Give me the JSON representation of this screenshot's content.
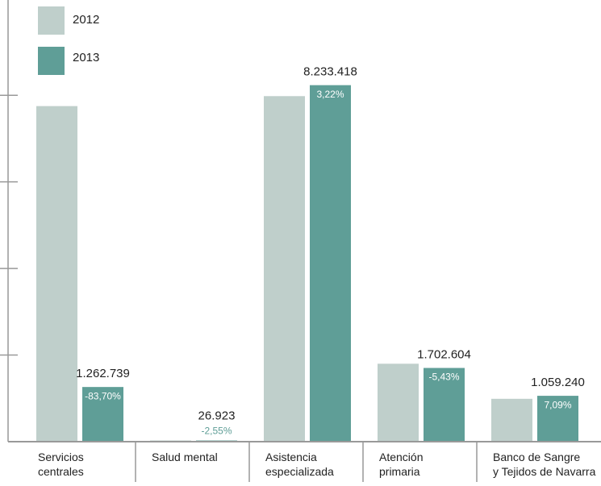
{
  "chart_data": {
    "type": "bar",
    "categories": [
      "Servicios\ncentrales",
      "Salud mental",
      "Asistencia\nespecializada",
      "Atención\nprimaria",
      "Banco de Sangre\ny Tejidos de Navarra"
    ],
    "series": [
      {
        "name": "2012",
        "color": "#bfcfcb",
        "values": [
          7750000,
          28000,
          7980000,
          1800000,
          990000
        ]
      },
      {
        "name": "2013",
        "color": "#5f9e97",
        "values": [
          1262739,
          26923,
          8233418,
          1702604,
          1059240
        ],
        "value_labels": [
          "1.262.739",
          "26.923",
          "8.233.418",
          "1.702.604",
          "1.059.240"
        ],
        "change_labels": [
          "-83,70%",
          "-2,55%",
          "3,22%",
          "-5,43%",
          "7,09%"
        ]
      }
    ],
    "ylim": [
      0,
      10200000
    ],
    "yticks": [
      2000000,
      4000000,
      6000000,
      8000000
    ],
    "grid": false
  }
}
